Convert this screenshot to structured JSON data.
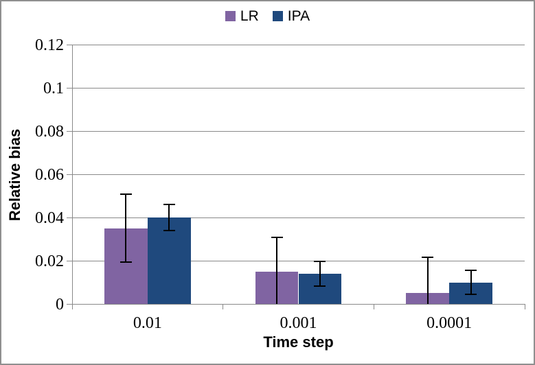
{
  "frame": {
    "border_color": "#8f8f8f",
    "background": "#ffffff"
  },
  "legend": [
    {
      "label": "LR",
      "color": "#8064A2"
    },
    {
      "label": "IPA",
      "color": "#1F497D"
    }
  ],
  "chart_data": {
    "type": "bar",
    "title": "",
    "xlabel": "Time step",
    "ylabel": "Relative bias",
    "categories": [
      "0.01",
      "0.001",
      "0.0001"
    ],
    "series": [
      {
        "name": "LR",
        "color": "#8064A2",
        "values": [
          0.035,
          0.015,
          0.005
        ],
        "error": [
          0.016,
          0.016,
          0.017
        ]
      },
      {
        "name": "IPA",
        "color": "#1F497D",
        "values": [
          0.04,
          0.014,
          0.01
        ],
        "error": [
          0.0065,
          0.006,
          0.006
        ]
      }
    ],
    "ylim": [
      0,
      0.12
    ],
    "y_ticks": [
      {
        "value": 0,
        "label": "0"
      },
      {
        "value": 0.02,
        "label": "0.02"
      },
      {
        "value": 0.04,
        "label": "0.04"
      },
      {
        "value": 0.06,
        "label": "0.06"
      },
      {
        "value": 0.08,
        "label": "0.08"
      },
      {
        "value": 0.1,
        "label": "0.1"
      },
      {
        "value": 0.12,
        "label": "0.12"
      }
    ],
    "grid": true,
    "legend_position": "top",
    "gridline_color": "#898989",
    "axis_color": "#898989",
    "error_bar_color": "#000000",
    "gap_width_percent": 150
  }
}
